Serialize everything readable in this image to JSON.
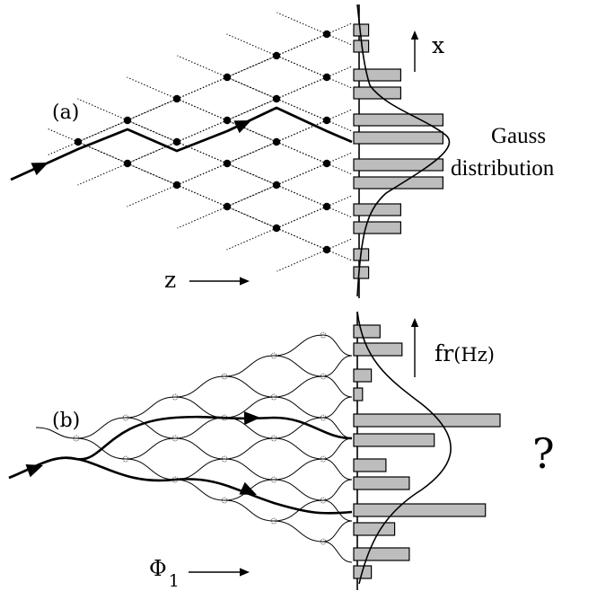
{
  "panels": {
    "a": {
      "label": "(a)",
      "vertical_axis_label": "x",
      "horizontal_axis_label": "z",
      "distribution_label_line1": "Gauss",
      "distribution_label_line2": "distribution"
    },
    "b": {
      "label": "(b)",
      "vertical_axis_label": "fr",
      "vertical_axis_unit": "(Hz)",
      "horizontal_axis_symbol": "Φ",
      "horizontal_axis_subscript": "1",
      "distribution_label": "?"
    }
  },
  "bars_a": [
    0.12,
    0.12,
    0.38,
    0.38,
    0.72,
    0.72,
    0.72,
    0.72,
    0.38,
    0.38,
    0.12,
    0.12
  ],
  "bars_b": [
    0.18,
    0.33,
    0.12,
    0.06,
    1.0,
    0.55,
    0.22,
    0.38,
    0.9,
    0.28,
    0.38,
    0.12
  ],
  "colors": {
    "bar_fill": "#bdbdbd",
    "stroke": "#000000"
  }
}
